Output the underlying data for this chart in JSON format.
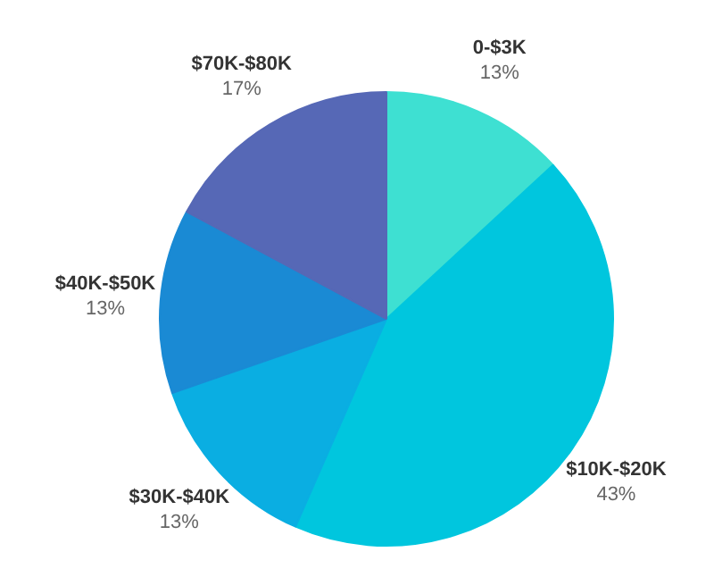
{
  "chart_data": {
    "type": "pie",
    "categories": [
      "0-$3K",
      "$10K-$20K",
      "$30K-$40K",
      "$40K-$50K",
      "$70K-$80K"
    ],
    "values": [
      13,
      43,
      13,
      13,
      17
    ],
    "value_labels": [
      "13%",
      "43%",
      "13%",
      "13%",
      "17%"
    ],
    "colors": [
      "#3ee0d2",
      "#00c6de",
      "#0aaee2",
      "#1a8ad4",
      "#5668b6"
    ]
  }
}
